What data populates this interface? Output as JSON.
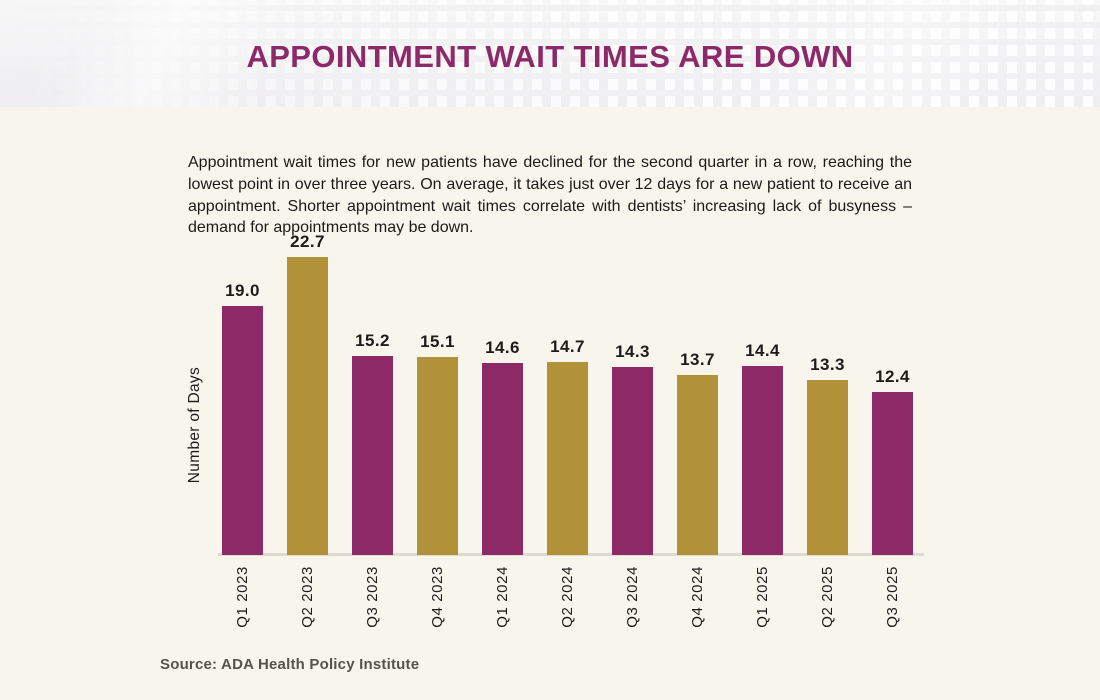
{
  "header": {
    "title": "APPOINTMENT WAIT TIMES ARE DOWN"
  },
  "intro": {
    "text": "Appointment wait times for new patients have declined for the second quarter in a row, reaching the lowest point in over three years. On average, it takes just over 12 days for a new patient to receive an appointment. Shorter appointment wait times correlate with dentists’ increasing lack of busyness – demand for appointments may be down."
  },
  "chart_data": {
    "type": "bar",
    "title": "",
    "categories": [
      "Q1 2023",
      "Q2 2023",
      "Q3 2023",
      "Q4 2023",
      "Q1 2024",
      "Q2 2024",
      "Q3 2024",
      "Q4 2024",
      "Q1 2025",
      "Q2 2025",
      "Q3 2025"
    ],
    "values": [
      19.0,
      22.7,
      15.2,
      15.1,
      14.6,
      14.7,
      14.3,
      13.7,
      14.4,
      13.3,
      12.4
    ],
    "xlabel": "",
    "ylabel": "Number of Days",
    "ylim": [
      0,
      22.7
    ],
    "grid": false,
    "legend": false,
    "bar_value_labels": true,
    "value_label_decimals": 1,
    "alternating_bar_colors": [
      "#8C2966",
      "#B29238"
    ]
  },
  "footer": {
    "source": "Source: ADA Health Policy Institute"
  },
  "colors": {
    "title_text": "#8D2968",
    "bar_magenta": "#8C2966",
    "bar_gold": "#B29238",
    "page_background": "#F8F5EC",
    "header_background": "#F1F0F2",
    "axis_line": "#DFDBD2",
    "body_text": "#1B1A18",
    "source_text": "#56534D"
  }
}
